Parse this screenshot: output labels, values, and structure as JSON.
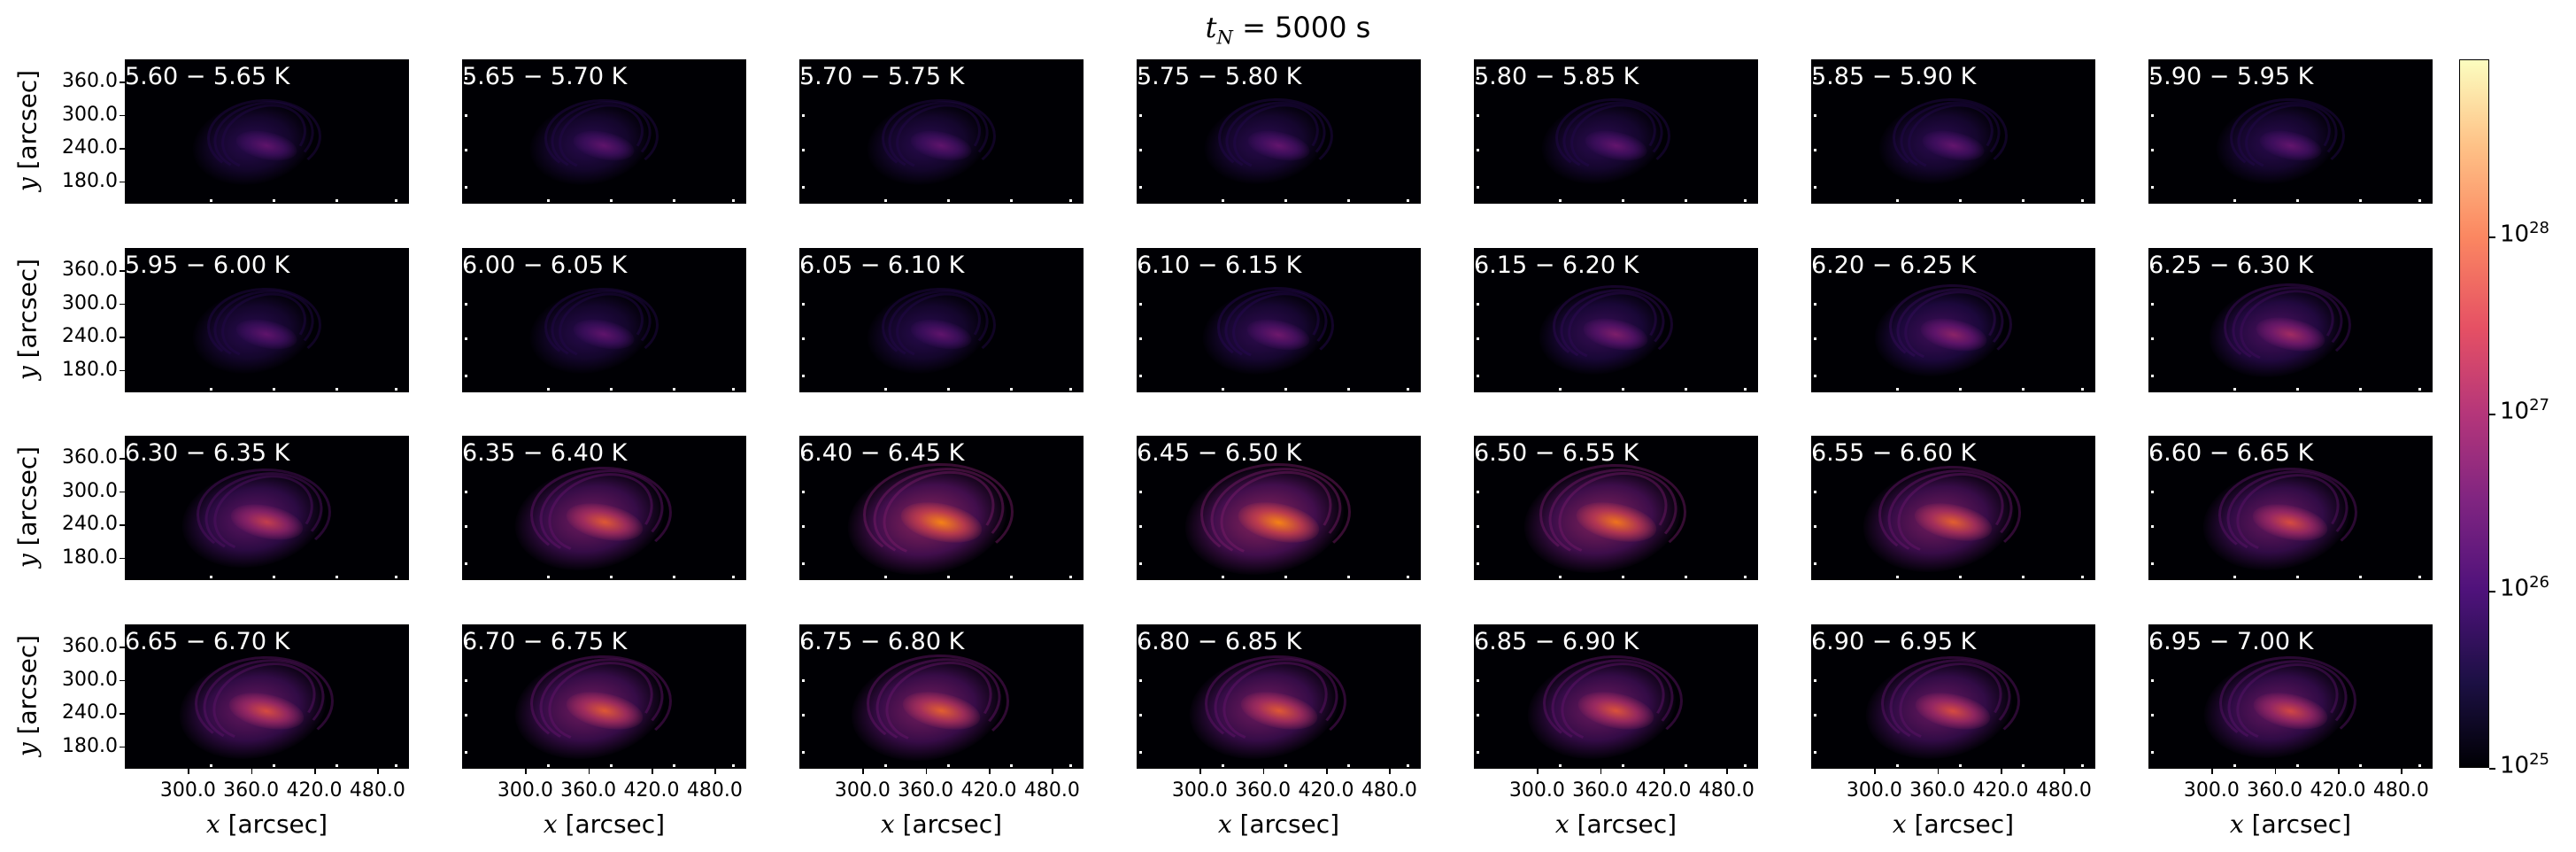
{
  "title": {
    "var": "t",
    "sub": "N",
    "rest": " = 5000 s"
  },
  "ylabel": {
    "var": "y",
    "rest": " [arcsec]"
  },
  "xlabel": {
    "var": "x",
    "rest": " [arcsec]"
  },
  "yticks": [
    "360.0",
    "300.0",
    "240.0",
    "180.0"
  ],
  "xticks": [
    "300.0",
    "360.0",
    "420.0",
    "480.0"
  ],
  "colorbar": {
    "scale": "log",
    "ticks": [
      {
        "base": "10",
        "exp": "28",
        "value": 1e+28
      },
      {
        "base": "10",
        "exp": "27",
        "value": 1e+27
      },
      {
        "base": "10",
        "exp": "26",
        "value": 1e+26
      },
      {
        "base": "10",
        "exp": "25",
        "value": 1e+25
      }
    ],
    "range": [
      1e+25,
      1e+29
    ],
    "colormap": "magma"
  },
  "chart_data": {
    "type": "heatmap",
    "layout": "4x7 grid of emission-measure maps",
    "x_range": [
      240.0,
      510.0
    ],
    "y_range": [
      140.0,
      400.0
    ],
    "panels": [
      {
        "label": "5.60 − 5.65 K",
        "intensity": 0.3
      },
      {
        "label": "5.65 − 5.70 K",
        "intensity": 0.3
      },
      {
        "label": "5.70 − 5.75 K",
        "intensity": 0.3
      },
      {
        "label": "5.75 − 5.80 K",
        "intensity": 0.31
      },
      {
        "label": "5.80 − 5.85 K",
        "intensity": 0.31
      },
      {
        "label": "5.85 − 5.90 K",
        "intensity": 0.31
      },
      {
        "label": "5.90 − 5.95 K",
        "intensity": 0.31
      },
      {
        "label": "5.95 − 6.00 K",
        "intensity": 0.3
      },
      {
        "label": "6.00 − 6.05 K",
        "intensity": 0.3
      },
      {
        "label": "6.05 − 6.10 K",
        "intensity": 0.3
      },
      {
        "label": "6.10 − 6.15 K",
        "intensity": 0.34
      },
      {
        "label": "6.15 − 6.20 K",
        "intensity": 0.38
      },
      {
        "label": "6.20 − 6.25 K",
        "intensity": 0.42
      },
      {
        "label": "6.25 − 6.30 K",
        "intensity": 0.48
      },
      {
        "label": "6.30 − 6.35 K",
        "intensity": 0.58
      },
      {
        "label": "6.35 − 6.40 K",
        "intensity": 0.68
      },
      {
        "label": "6.40 − 6.45 K",
        "intensity": 0.8
      },
      {
        "label": "6.45 − 6.50 K",
        "intensity": 0.8
      },
      {
        "label": "6.50 − 6.55 K",
        "intensity": 0.76
      },
      {
        "label": "6.55 − 6.60 K",
        "intensity": 0.7
      },
      {
        "label": "6.60 − 6.65 K",
        "intensity": 0.64
      },
      {
        "label": "6.65 − 6.70 K",
        "intensity": 0.64
      },
      {
        "label": "6.70 − 6.75 K",
        "intensity": 0.68
      },
      {
        "label": "6.75 − 6.80 K",
        "intensity": 0.7
      },
      {
        "label": "6.80 − 6.85 K",
        "intensity": 0.68
      },
      {
        "label": "6.85 − 6.90 K",
        "intensity": 0.66
      },
      {
        "label": "6.90 − 6.95 K",
        "intensity": 0.64
      },
      {
        "label": "6.95 − 7.00 K",
        "intensity": 0.62
      }
    ]
  }
}
